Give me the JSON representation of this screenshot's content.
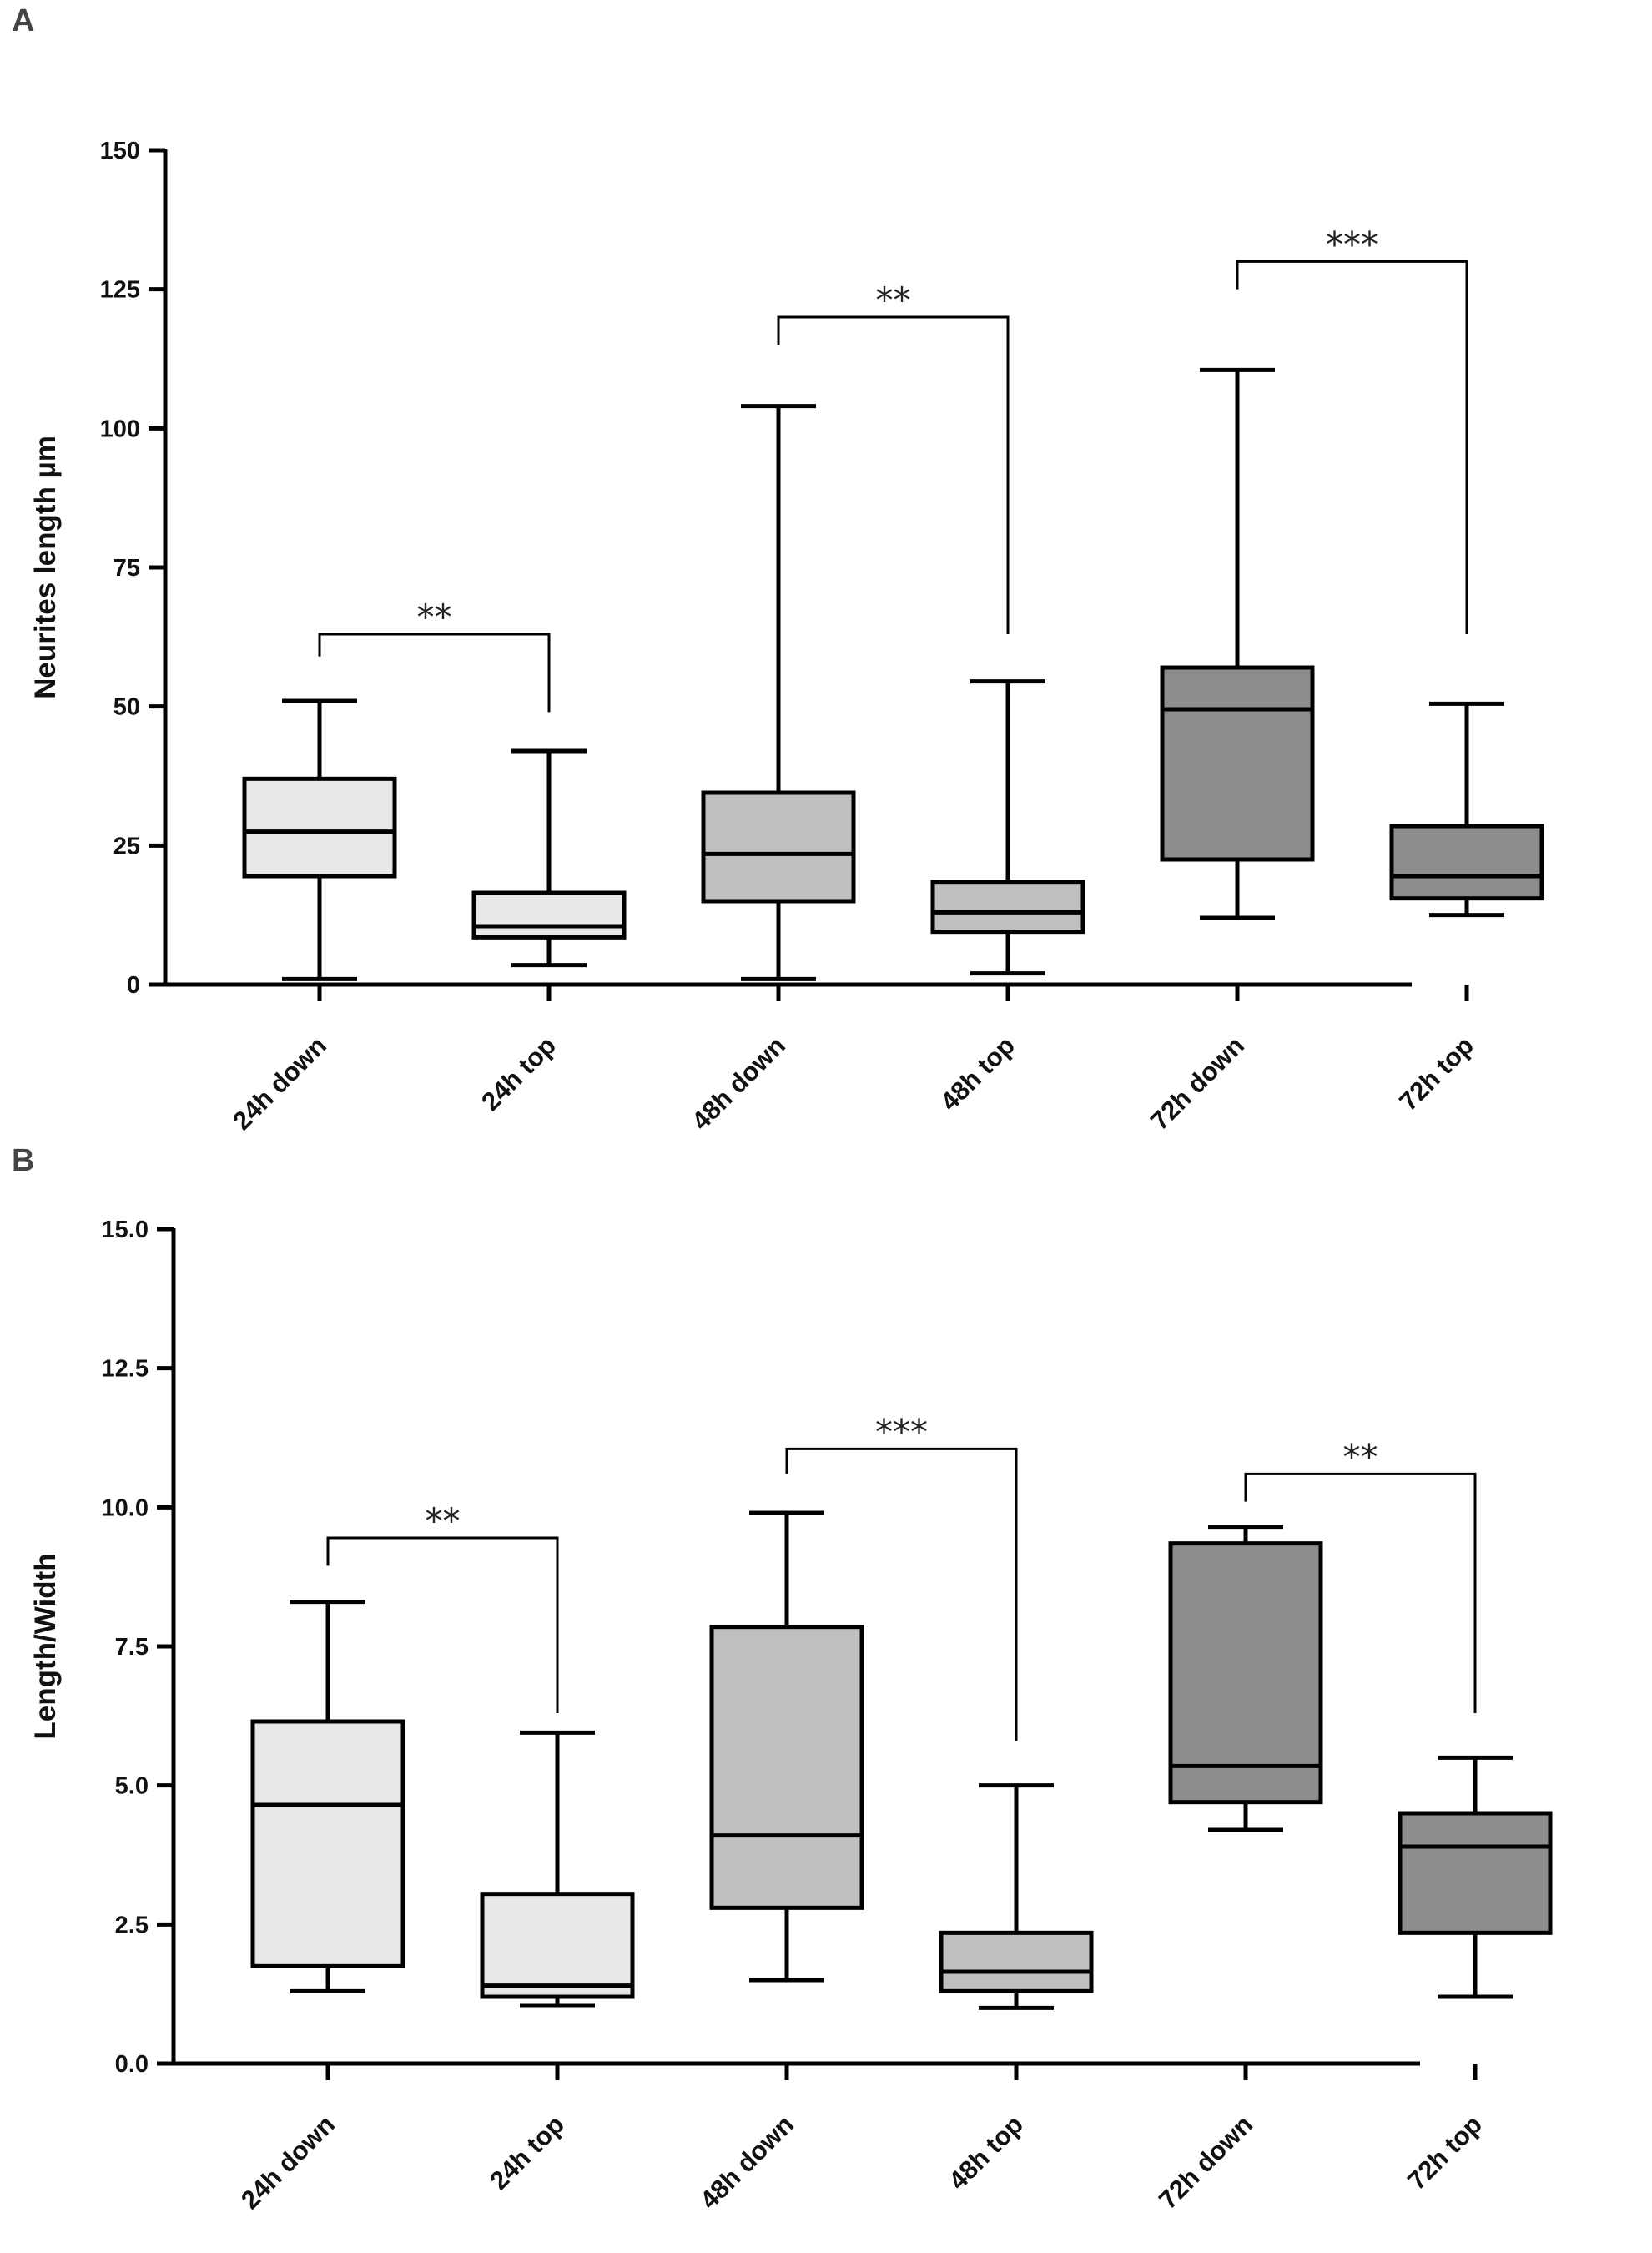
{
  "chart_data": [
    {
      "panel": "A",
      "type": "box",
      "ylabel": "Neurites length µm",
      "ylim": [
        0,
        150
      ],
      "yticks": [
        0,
        25,
        50,
        75,
        100,
        125,
        150
      ],
      "categories": [
        "24h down",
        "24h top",
        "48h down",
        "48h top",
        "72h down",
        "72h top"
      ],
      "colors": [
        "#e8e8e8",
        "#e8e8e8",
        "#c0c0c0",
        "#c0c0c0",
        "#8d8d8d",
        "#8d8d8d"
      ],
      "boxes": [
        {
          "min": 1,
          "q1": 19.5,
          "median": 27.5,
          "q3": 37,
          "max": 51
        },
        {
          "min": 3.5,
          "q1": 8.5,
          "median": 10.5,
          "q3": 16.5,
          "max": 42
        },
        {
          "min": 1,
          "q1": 15,
          "median": 23.5,
          "q3": 34.5,
          "max": 104
        },
        {
          "min": 2,
          "q1": 9.5,
          "median": 13,
          "q3": 18.5,
          "max": 54.5
        },
        {
          "min": 12,
          "q1": 22.5,
          "median": 49.5,
          "q3": 57,
          "max": 110.5
        },
        {
          "min": 12.5,
          "q1": 15.5,
          "median": 19.5,
          "q3": 28.5,
          "max": 50.5
        }
      ],
      "significance": [
        {
          "from": 0,
          "to": 1,
          "label": "**",
          "y": 63,
          "left_drop": 59,
          "right_drop": 49
        },
        {
          "from": 2,
          "to": 3,
          "label": "**",
          "y": 120,
          "left_drop": 115,
          "right_drop": 63
        },
        {
          "from": 4,
          "to": 5,
          "label": "***",
          "y": 130,
          "left_drop": 125,
          "right_drop": 63
        }
      ]
    },
    {
      "panel": "B",
      "type": "box",
      "ylabel": "Length/Width",
      "ylim": [
        0,
        15
      ],
      "yticks": [
        0.0,
        2.5,
        5.0,
        7.5,
        10.0,
        12.5,
        15.0
      ],
      "yticklabels": [
        "0.0",
        "2.5",
        "5.0",
        "7.5",
        "10.0",
        "12.5",
        "15.0"
      ],
      "categories": [
        "24h down",
        "24h top",
        "48h down",
        "48h top",
        "72h down",
        "72h top"
      ],
      "colors": [
        "#e8e8e8",
        "#e8e8e8",
        "#c0c0c0",
        "#c0c0c0",
        "#8d8d8d",
        "#8d8d8d"
      ],
      "boxes": [
        {
          "min": 1.3,
          "q1": 1.75,
          "median": 4.65,
          "q3": 6.15,
          "max": 8.3
        },
        {
          "min": 1.05,
          "q1": 1.2,
          "median": 1.4,
          "q3": 3.05,
          "max": 5.95
        },
        {
          "min": 1.5,
          "q1": 2.8,
          "median": 4.1,
          "q3": 7.85,
          "max": 9.9
        },
        {
          "min": 1.0,
          "q1": 1.3,
          "median": 1.65,
          "q3": 2.35,
          "max": 5.0
        },
        {
          "min": 4.2,
          "q1": 4.7,
          "median": 5.35,
          "q3": 9.35,
          "max": 9.65
        },
        {
          "min": 1.2,
          "q1": 2.35,
          "median": 3.9,
          "q3": 4.5,
          "max": 5.5
        }
      ],
      "significance": [
        {
          "from": 0,
          "to": 1,
          "label": "**",
          "y": 9.45,
          "left_drop": 8.95,
          "right_drop": 6.3
        },
        {
          "from": 2,
          "to": 3,
          "label": "***",
          "y": 11.05,
          "left_drop": 10.6,
          "right_drop": 5.8
        },
        {
          "from": 4,
          "to": 5,
          "label": "**",
          "y": 10.6,
          "left_drop": 10.1,
          "right_drop": 6.3
        }
      ]
    }
  ],
  "panel_labels": {
    "a": "A",
    "b": "B"
  }
}
